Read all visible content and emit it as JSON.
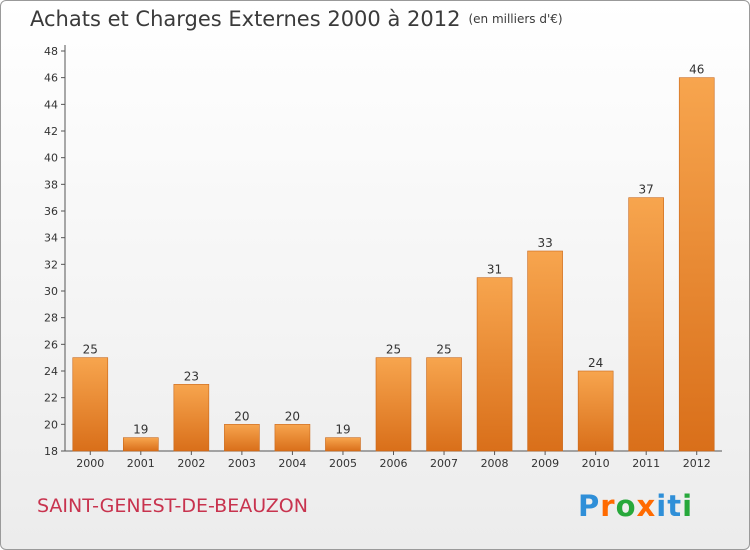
{
  "title": {
    "main": "Achats et Charges Externes 2000 à 2012",
    "unit": "(en milliers d'€)"
  },
  "town": "SAINT-GENEST-DE-BEAUZON",
  "logo": {
    "text": "Proxiti",
    "letter_colors": [
      "#2f8fd8",
      "#ff6a00",
      "#27a83b",
      "#ff6a00",
      "#2f8fd8",
      "#2f8fd8",
      "#27a83b"
    ]
  },
  "chart_data": {
    "type": "bar",
    "title": "Achats et Charges Externes 2000 à 2012",
    "subtitle": "(en milliers d'€)",
    "xlabel": "",
    "ylabel": "",
    "categories": [
      "2000",
      "2001",
      "2002",
      "2003",
      "2004",
      "2005",
      "2006",
      "2007",
      "2008",
      "2009",
      "2010",
      "2011",
      "2012"
    ],
    "values": [
      25,
      19,
      23,
      20,
      20,
      19,
      25,
      25,
      31,
      33,
      24,
      37,
      46
    ],
    "ylim": [
      18,
      48
    ],
    "ytick_step": 2,
    "grid": false,
    "legend": "none",
    "bar_color_light": "#f7a54e",
    "bar_color_dark": "#d96f1a"
  }
}
